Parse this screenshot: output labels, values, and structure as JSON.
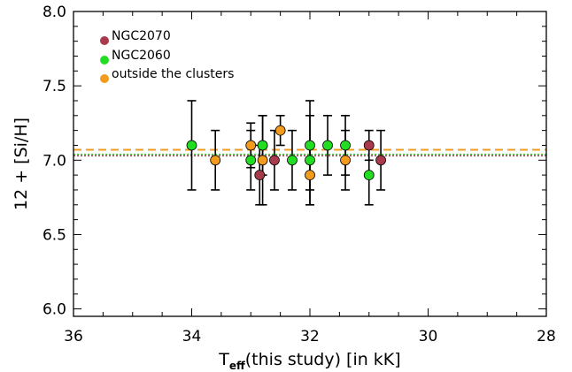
{
  "colors": {
    "ngc2070": "#a83a4b",
    "ngc2060": "#22dd22",
    "outside": "#f29b1c",
    "axis": "#000000"
  },
  "chart_data": {
    "type": "scatter",
    "title": "",
    "xlabel": {
      "main": "T",
      "sub": "eff",
      "rest": "(this study) [in kK]"
    },
    "ylabel": "12 + [Si/H]",
    "xlim": [
      36,
      28
    ],
    "ylim": [
      5.95,
      8.0
    ],
    "x_ticks": [
      "36",
      "34",
      "32",
      "30",
      "28"
    ],
    "y_ticks": [
      "6.0",
      "6.5",
      "7.0",
      "7.5",
      "8.0"
    ],
    "reference_lines": [
      {
        "name": "NGC2070",
        "y": 7.03,
        "style": "dotted"
      },
      {
        "name": "NGC2060",
        "y": 7.04,
        "style": "dotted"
      },
      {
        "name": "outside the clusters",
        "y": 7.07,
        "style": "dashed"
      }
    ],
    "legend_position": "top-left",
    "series": [
      {
        "name": "NGC2070",
        "points": [
          {
            "x": 32.85,
            "y": 6.9,
            "err": 0.2
          },
          {
            "x": 32.6,
            "y": 7.0,
            "err": 0.2
          },
          {
            "x": 31.0,
            "y": 7.1,
            "err": 0.1
          },
          {
            "x": 30.8,
            "y": 7.0,
            "err": 0.2
          }
        ]
      },
      {
        "name": "NGC2060",
        "points": [
          {
            "x": 34.0,
            "y": 7.1,
            "err": 0.3
          },
          {
            "x": 33.0,
            "y": 7.0,
            "err": 0.2
          },
          {
            "x": 32.8,
            "y": 7.1,
            "err": 0.2
          },
          {
            "x": 32.3,
            "y": 7.0,
            "err": 0.2
          },
          {
            "x": 32.0,
            "y": 7.1,
            "err": 0.3
          },
          {
            "x": 32.0,
            "y": 7.0,
            "err": 0.3
          },
          {
            "x": 31.7,
            "y": 7.1,
            "err": 0.2
          },
          {
            "x": 31.4,
            "y": 7.1,
            "err": 0.2
          },
          {
            "x": 31.0,
            "y": 6.9,
            "err": 0.2
          }
        ]
      },
      {
        "name": "outside the clusters",
        "points": [
          {
            "x": 33.6,
            "y": 7.0,
            "err": 0.2
          },
          {
            "x": 33.0,
            "y": 7.1,
            "err": 0.15
          },
          {
            "x": 32.8,
            "y": 7.0,
            "err": 0.3
          },
          {
            "x": 32.5,
            "y": 7.2,
            "err": 0.1
          },
          {
            "x": 32.0,
            "y": 6.9,
            "err": 0.2
          },
          {
            "x": 31.4,
            "y": 7.0,
            "err": 0.2
          }
        ]
      }
    ]
  }
}
